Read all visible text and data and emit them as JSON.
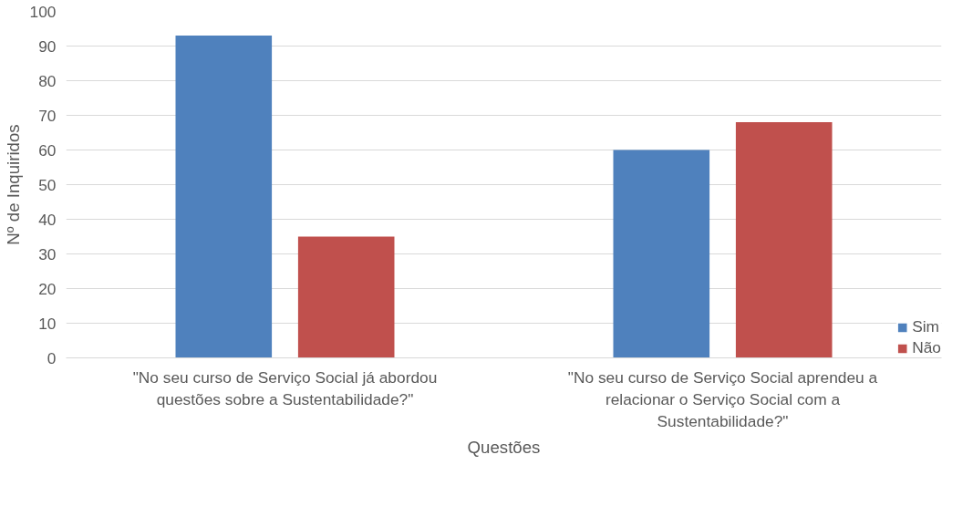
{
  "chart_data": {
    "type": "bar",
    "xlabel": "Questões",
    "ylabel": "Nº de Inquiridos",
    "categories": [
      "\"No seu curso de Serviço Social já abordou questões sobre a Sustentabilidade?\"",
      "\"No seu curso de Serviço Social aprendeu a relacionar o Serviço Social com a Sustentabilidade?\""
    ],
    "series": [
      {
        "name": "Sim",
        "color": "#4f81bd",
        "values": [
          93,
          60
        ]
      },
      {
        "name": "Não",
        "color": "#c0504d",
        "values": [
          35,
          68
        ]
      }
    ],
    "ylim": [
      0,
      100
    ],
    "yticks": [
      0,
      10,
      20,
      30,
      40,
      50,
      60,
      70,
      80,
      90,
      100
    ],
    "grid": "y",
    "legend": "bottom right"
  }
}
